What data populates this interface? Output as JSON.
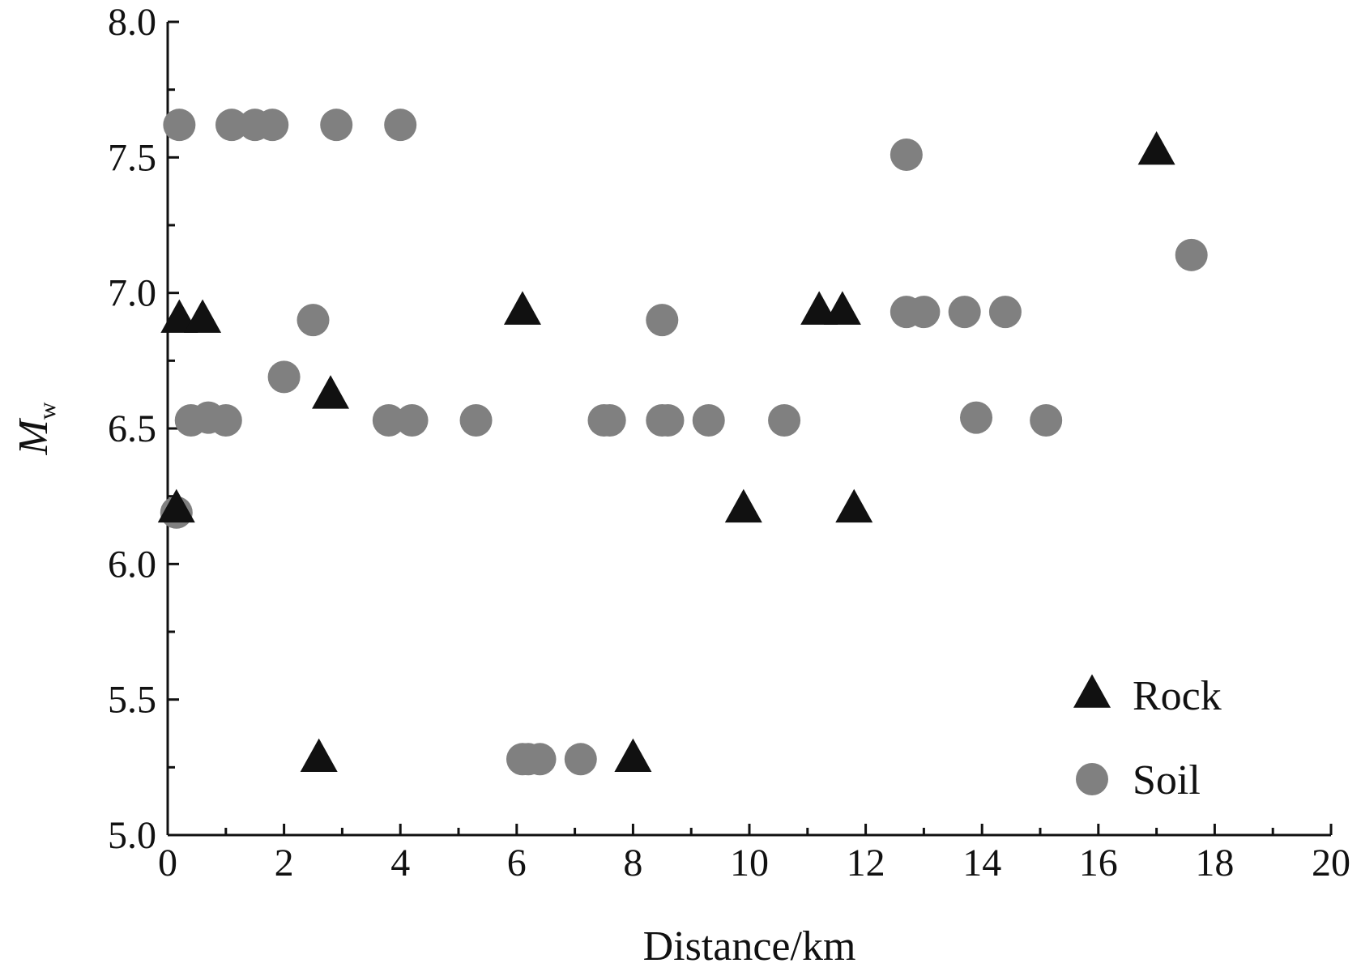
{
  "chart_data": {
    "type": "scatter",
    "xlabel": "Distance/km",
    "ylabel": {
      "main": "M",
      "subscript": "w"
    },
    "xlim": [
      0,
      20
    ],
    "ylim": [
      5.0,
      8.0
    ],
    "x_ticks": [
      "0",
      "2",
      "4",
      "6",
      "8",
      "10",
      "12",
      "14",
      "16",
      "18",
      "20"
    ],
    "x_tick_values": [
      0,
      2,
      4,
      6,
      8,
      10,
      12,
      14,
      16,
      18,
      20
    ],
    "y_ticks": [
      "5.0",
      "5.5",
      "6.0",
      "6.5",
      "7.0",
      "7.5",
      "8.0"
    ],
    "y_tick_values": [
      5.0,
      5.5,
      6.0,
      6.5,
      7.0,
      7.5,
      8.0
    ],
    "grid": false,
    "legend": "bottom-right",
    "series": [
      {
        "name": "Rock",
        "marker": "triangle",
        "color": "#111111",
        "points": [
          [
            0.15,
            6.2
          ],
          [
            0.2,
            6.9
          ],
          [
            0.6,
            6.9
          ],
          [
            2.6,
            5.28
          ],
          [
            2.8,
            6.62
          ],
          [
            6.1,
            6.93
          ],
          [
            8.0,
            5.28
          ],
          [
            9.9,
            6.2
          ],
          [
            11.2,
            6.93
          ],
          [
            11.6,
            6.93
          ],
          [
            11.8,
            6.2
          ],
          [
            17.0,
            7.52
          ]
        ]
      },
      {
        "name": "Soil",
        "marker": "circle",
        "color": "#808080",
        "points": [
          [
            0.2,
            7.62
          ],
          [
            1.1,
            7.62
          ],
          [
            1.5,
            7.62
          ],
          [
            1.8,
            7.62
          ],
          [
            2.9,
            7.62
          ],
          [
            4.0,
            7.62
          ],
          [
            0.15,
            6.19
          ],
          [
            0.4,
            6.53
          ],
          [
            0.7,
            6.54
          ],
          [
            1.0,
            6.53
          ],
          [
            2.0,
            6.69
          ],
          [
            2.5,
            6.9
          ],
          [
            3.8,
            6.53
          ],
          [
            4.2,
            6.53
          ],
          [
            5.3,
            6.53
          ],
          [
            7.5,
            6.53
          ],
          [
            7.6,
            6.53
          ],
          [
            8.5,
            6.9
          ],
          [
            8.5,
            6.53
          ],
          [
            8.6,
            6.53
          ],
          [
            9.3,
            6.53
          ],
          [
            10.6,
            6.53
          ],
          [
            12.7,
            7.51
          ],
          [
            12.7,
            6.93
          ],
          [
            13.0,
            6.93
          ],
          [
            13.7,
            6.93
          ],
          [
            14.4,
            6.93
          ],
          [
            13.9,
            6.54
          ],
          [
            15.1,
            6.53
          ],
          [
            17.6,
            7.14
          ],
          [
            6.1,
            5.28
          ],
          [
            6.2,
            5.28
          ],
          [
            6.4,
            5.28
          ],
          [
            7.1,
            5.28
          ]
        ]
      }
    ]
  }
}
